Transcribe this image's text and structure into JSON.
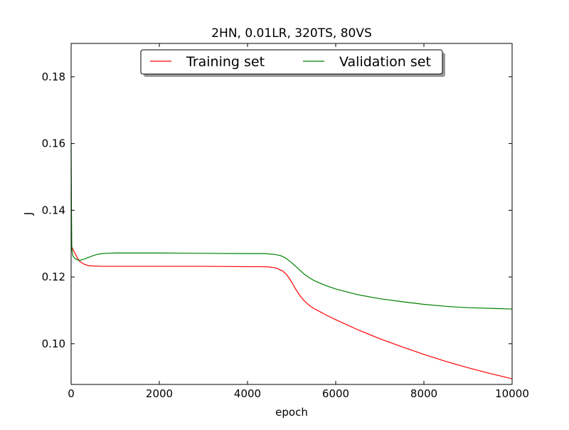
{
  "chart_data": {
    "type": "line",
    "title": "2HN, 0.01LR, 320TS, 80VS",
    "xlabel": "epoch",
    "ylabel": "J",
    "xlim": [
      0,
      10000
    ],
    "ylim": [
      0.0878,
      0.19
    ],
    "xticks": [
      0,
      2000,
      4000,
      6000,
      8000,
      10000
    ],
    "xtick_labels": [
      "0",
      "2000",
      "4000",
      "6000",
      "8000",
      "10000"
    ],
    "yticks": [
      0.1,
      0.12,
      0.14,
      0.16,
      0.18
    ],
    "ytick_labels": [
      "0.10",
      "0.12",
      "0.14",
      "0.16",
      "0.18"
    ],
    "grid": false,
    "legend_position": "top-center",
    "series": [
      {
        "name": "Training set",
        "color": "#ff0000",
        "points": [
          [
            0,
            0.1305
          ],
          [
            20,
            0.1288
          ],
          [
            60,
            0.1278
          ],
          [
            100,
            0.1268
          ],
          [
            150,
            0.1255
          ],
          [
            200,
            0.1246
          ],
          [
            300,
            0.1238
          ],
          [
            400,
            0.1234
          ],
          [
            500,
            0.1233
          ],
          [
            700,
            0.1232
          ],
          [
            1000,
            0.1232
          ],
          [
            2000,
            0.1232
          ],
          [
            3000,
            0.1232
          ],
          [
            4000,
            0.1231
          ],
          [
            4300,
            0.1231
          ],
          [
            4500,
            0.123
          ],
          [
            4650,
            0.1227
          ],
          [
            4800,
            0.1218
          ],
          [
            4900,
            0.1205
          ],
          [
            5000,
            0.1185
          ],
          [
            5100,
            0.1162
          ],
          [
            5200,
            0.1142
          ],
          [
            5300,
            0.1127
          ],
          [
            5400,
            0.1115
          ],
          [
            5500,
            0.1106
          ],
          [
            5600,
            0.1099
          ],
          [
            5800,
            0.1085
          ],
          [
            6000,
            0.1072
          ],
          [
            6500,
            0.1042
          ],
          [
            7000,
            0.1015
          ],
          [
            7500,
            0.0991
          ],
          [
            8000,
            0.0968
          ],
          [
            8500,
            0.0947
          ],
          [
            9000,
            0.0928
          ],
          [
            9500,
            0.0911
          ],
          [
            10000,
            0.0895
          ]
        ]
      },
      {
        "name": "Validation set",
        "color": "#008000",
        "points": [
          [
            0,
            0.16
          ],
          [
            8,
            0.14
          ],
          [
            15,
            0.1285
          ],
          [
            40,
            0.1263
          ],
          [
            80,
            0.1256
          ],
          [
            150,
            0.1251
          ],
          [
            200,
            0.125
          ],
          [
            300,
            0.1254
          ],
          [
            400,
            0.1259
          ],
          [
            500,
            0.1264
          ],
          [
            600,
            0.1268
          ],
          [
            700,
            0.127
          ],
          [
            800,
            0.1271
          ],
          [
            1000,
            0.1272
          ],
          [
            1500,
            0.1272
          ],
          [
            2000,
            0.1272
          ],
          [
            3000,
            0.1271
          ],
          [
            4000,
            0.127
          ],
          [
            4400,
            0.127
          ],
          [
            4600,
            0.1268
          ],
          [
            4750,
            0.1264
          ],
          [
            4850,
            0.1258
          ],
          [
            5000,
            0.1243
          ],
          [
            5100,
            0.1231
          ],
          [
            5200,
            0.1219
          ],
          [
            5300,
            0.1207
          ],
          [
            5400,
            0.1198
          ],
          [
            5500,
            0.119
          ],
          [
            5600,
            0.1184
          ],
          [
            5800,
            0.1173
          ],
          [
            6000,
            0.1164
          ],
          [
            6500,
            0.1147
          ],
          [
            7000,
            0.1135
          ],
          [
            7500,
            0.1126
          ],
          [
            8000,
            0.1118
          ],
          [
            8500,
            0.1112
          ],
          [
            9000,
            0.1108
          ],
          [
            9500,
            0.1106
          ],
          [
            10000,
            0.1104
          ]
        ]
      }
    ]
  }
}
